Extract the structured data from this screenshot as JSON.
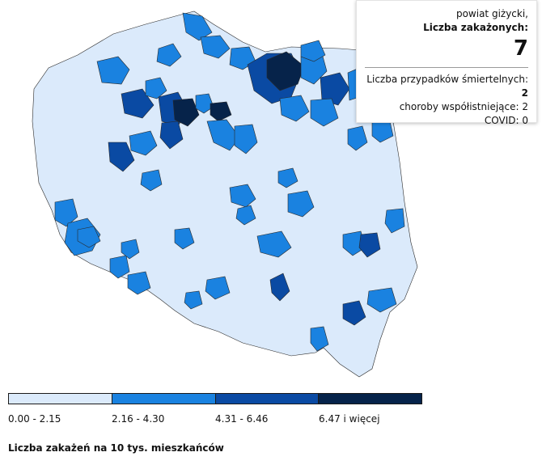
{
  "tooltip": {
    "region": "powiat giżycki,",
    "cases_label": "Liczba zakażonych:",
    "cases_value": "7",
    "deaths_label": "Liczba przypadków śmiertelnych:",
    "deaths_value": "2",
    "comorbid_text": "choroby współistniejące: 2",
    "covid_text": "COVID: 0"
  },
  "legend": {
    "title": "Liczba zakażeń na 10 tys. mieszkańców",
    "classes": [
      {
        "label": "0.00 - 2.15",
        "color": "#dbeafb"
      },
      {
        "label": "2.16 - 4.30",
        "color": "#1a82e0"
      },
      {
        "label": "4.31 - 6.46",
        "color": "#0a4aa3"
      },
      {
        "label": "6.47 i więcej",
        "color": "#06234a"
      }
    ]
  },
  "colors": {
    "border": "#2a2a2a",
    "background": "#ffffff"
  }
}
